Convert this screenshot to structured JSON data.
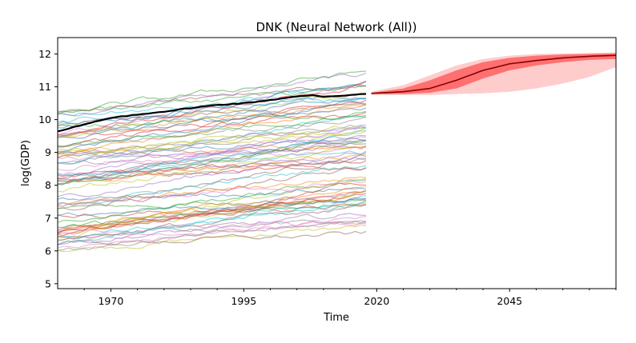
{
  "chart_data": {
    "type": "line",
    "title": "DNK (Neural Network (All))",
    "xlabel": "Time",
    "ylabel": "log(GDP)",
    "xlim": [
      1960,
      2065
    ],
    "ylim": [
      4.85,
      12.5
    ],
    "x_ticks": [
      1970,
      1995,
      2020,
      2045
    ],
    "y_ticks": [
      5,
      6,
      7,
      8,
      9,
      10,
      11,
      12
    ],
    "grid": false,
    "legend": "none",
    "history": {
      "name": "DNK",
      "color": "#000000",
      "x": [
        1960,
        1965,
        1970,
        1975,
        1980,
        1985,
        1990,
        1995,
        2000,
        2005,
        2008,
        2010,
        2015,
        2018
      ],
      "values": [
        9.65,
        9.85,
        10.05,
        10.15,
        10.25,
        10.35,
        10.45,
        10.5,
        10.6,
        10.7,
        10.75,
        10.7,
        10.75,
        10.78
      ]
    },
    "forecast": {
      "color": "#ff0000",
      "x": [
        2019,
        2025,
        2030,
        2035,
        2040,
        2045,
        2050,
        2055,
        2060,
        2065
      ],
      "median": [
        10.8,
        10.85,
        10.95,
        11.2,
        11.5,
        11.7,
        11.8,
        11.88,
        11.93,
        11.96
      ],
      "inner_lower": [
        10.78,
        10.78,
        10.82,
        10.95,
        11.25,
        11.5,
        11.65,
        11.75,
        11.82,
        11.85
      ],
      "inner_upper": [
        10.82,
        10.95,
        11.2,
        11.5,
        11.75,
        11.88,
        11.95,
        11.98,
        12.0,
        12.02
      ],
      "outer_lower": [
        10.75,
        10.75,
        10.75,
        10.78,
        10.8,
        10.85,
        10.95,
        11.1,
        11.3,
        11.6
      ],
      "outer_upper": [
        10.85,
        11.05,
        11.35,
        11.65,
        11.85,
        11.95,
        12.0,
        12.02,
        12.03,
        12.05
      ]
    },
    "background_series": {
      "count": 80,
      "x_range": [
        1960,
        2018
      ],
      "value_range": [
        5.3,
        11.5
      ],
      "colors": [
        "#1f77b4",
        "#ff7f0e",
        "#2ca02c",
        "#d62728",
        "#9467bd",
        "#8c564b",
        "#e377c2",
        "#7f7f7f",
        "#bcbd22",
        "#17becf"
      ]
    }
  }
}
